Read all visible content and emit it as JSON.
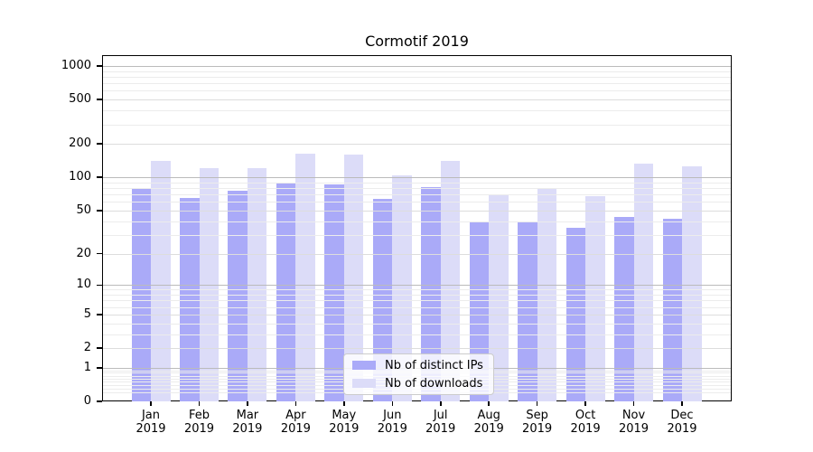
{
  "chart_data": {
    "type": "bar",
    "title": "Cormotif 2019",
    "xlabel": "",
    "ylabel": "",
    "yscale": "symlog",
    "ylim": [
      0,
      1250
    ],
    "yticks": [
      0,
      1,
      2,
      5,
      10,
      20,
      50,
      100,
      200,
      500,
      1000
    ],
    "grid": true,
    "legend_position": "inside-bottom-center",
    "year": "2019",
    "months": [
      "Jan",
      "Feb",
      "Mar",
      "Apr",
      "May",
      "Jun",
      "Jul",
      "Aug",
      "Sep",
      "Oct",
      "Nov",
      "Dec"
    ],
    "series": [
      {
        "name": "Nb of distinct IPs",
        "color": "#aaaaf8",
        "values": [
          80,
          65,
          76,
          90,
          87,
          64,
          82,
          40,
          39,
          35,
          44,
          42
        ]
      },
      {
        "name": "Nb of downloads",
        "color": "#dcdcf8",
        "values": [
          142,
          120,
          120,
          165,
          160,
          105,
          142,
          70,
          79,
          68,
          133,
          125
        ]
      }
    ],
    "colors": {
      "axis": "#000000",
      "grid_major": "#bbbbbb",
      "grid_labeled": "#dddddd",
      "grid_minor": "#ececec",
      "legend_border": "#cccccc"
    }
  }
}
